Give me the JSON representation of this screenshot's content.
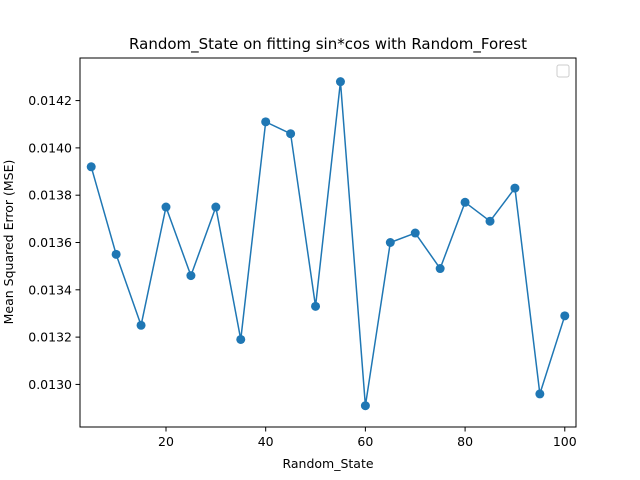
{
  "chart_data": {
    "type": "line",
    "title": "Random_State on fitting sin*cos with Random_Forest",
    "xlabel": "Random_State",
    "ylabel": "Mean Squared Error (MSE)",
    "xlim": [
      2.75,
      102.25
    ],
    "ylim": [
      0.01282,
      0.01438
    ],
    "xticks": [
      20,
      40,
      60,
      80,
      100
    ],
    "xtick_labels": [
      "20",
      "40",
      "60",
      "80",
      "100"
    ],
    "yticks": [
      0.013,
      0.0132,
      0.0134,
      0.0136,
      0.0138,
      0.014,
      0.0142
    ],
    "ytick_labels": [
      "0.0130",
      "0.0132",
      "0.0134",
      "0.0136",
      "0.0138",
      "0.0140",
      "0.0142"
    ],
    "grid": false,
    "legend": "upper right, empty",
    "series": [
      {
        "color": "#1f77b4",
        "marker": "circle",
        "x": [
          5,
          10,
          15,
          20,
          25,
          30,
          35,
          40,
          45,
          50,
          55,
          60,
          65,
          70,
          75,
          80,
          85,
          90,
          95,
          100
        ],
        "y": [
          0.01392,
          0.01355,
          0.01325,
          0.01375,
          0.01346,
          0.01375,
          0.01319,
          0.01411,
          0.01406,
          0.01333,
          0.01428,
          0.01291,
          0.0136,
          0.01364,
          0.01349,
          0.01377,
          0.01369,
          0.01383,
          0.01296,
          0.01329
        ]
      }
    ]
  }
}
